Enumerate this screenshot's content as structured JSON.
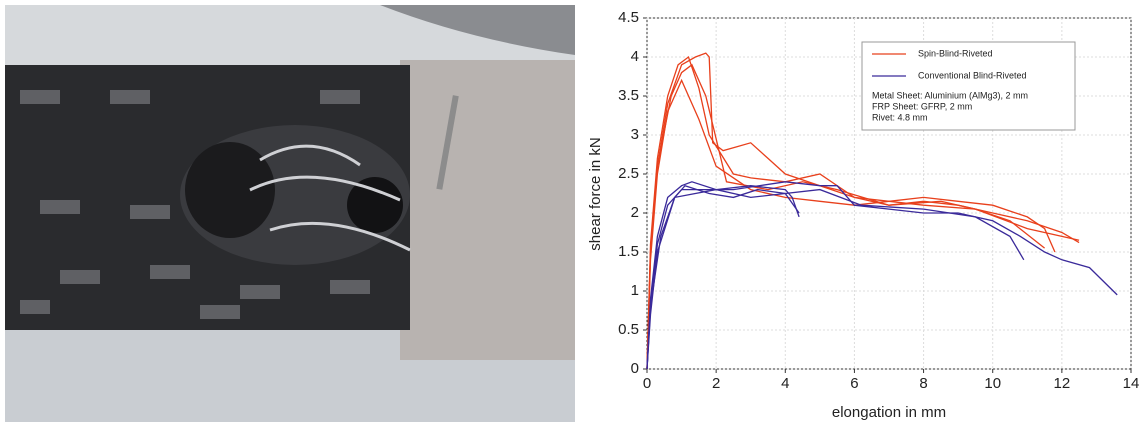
{
  "chart_data": {
    "type": "line",
    "xlabel": "elongation in mm",
    "ylabel": "shear force in kN",
    "xlim": [
      0,
      14
    ],
    "ylim": [
      0,
      4.5
    ],
    "xticks": [
      0,
      2,
      4,
      6,
      8,
      10,
      12,
      14
    ],
    "yticks": [
      0,
      0.5,
      1,
      1.5,
      2,
      2.5,
      3,
      3.5,
      4,
      4.5
    ],
    "grid": true,
    "legend": "upper right",
    "annotations": [
      "Metal Sheet: Aluminium (AlMg3), 2 mm",
      "FRP Sheet: GFRP, 2 mm",
      "Rivet: 4.8 mm"
    ],
    "series": [
      {
        "name": "Spin-Blind-Riveted",
        "color": "#e8401c",
        "curves": [
          {
            "x": [
              0,
              0.1,
              0.3,
              0.6,
              1.0,
              1.4,
              1.7,
              1.8,
              1.9,
              2.2,
              2.6,
              3.0,
              3.5,
              4.0,
              5.0,
              6.0,
              7.0,
              8.0,
              9.0,
              10.0,
              11.0,
              12.0,
              12.5
            ],
            "values": [
              0,
              1.5,
              2.6,
              3.4,
              3.9,
              4.0,
              4.05,
              4.0,
              2.9,
              2.8,
              2.85,
              2.9,
              2.7,
              2.5,
              2.35,
              2.2,
              2.1,
              2.15,
              2.1,
              2.0,
              1.9,
              1.75,
              1.62
            ]
          },
          {
            "x": [
              0,
              0.1,
              0.3,
              0.6,
              0.9,
              1.2,
              1.5,
              1.8,
              2.5,
              3.0,
              4.0,
              5.0,
              6.0,
              7.0,
              8.0,
              9.5,
              10.5,
              11.5
            ],
            "values": [
              0,
              1.6,
              2.7,
              3.5,
              3.9,
              4.0,
              3.6,
              3.0,
              2.5,
              2.45,
              2.4,
              2.5,
              2.2,
              2.15,
              2.1,
              2.05,
              1.9,
              1.55
            ]
          },
          {
            "x": [
              0,
              0.1,
              0.3,
              0.6,
              1.0,
              1.5,
              2.0,
              3.0,
              4.0,
              5.0,
              6.0,
              7.0,
              8.0,
              9.0,
              10.0,
              11.0,
              11.5,
              11.8
            ],
            "values": [
              0,
              1.4,
              2.5,
              3.3,
              3.7,
              3.2,
              2.6,
              2.3,
              2.2,
              2.15,
              2.1,
              2.15,
              2.2,
              2.15,
              2.1,
              1.95,
              1.8,
              1.5
            ]
          },
          {
            "x": [
              0,
              0.1,
              0.3,
              0.7,
              1.0,
              1.3,
              1.7,
              2.3,
              3.5,
              4.5,
              5.5,
              7.0,
              8.5,
              9.5,
              11.0,
              12.0,
              12.5
            ],
            "values": [
              0,
              1.5,
              2.6,
              3.5,
              3.8,
              3.9,
              3.5,
              2.4,
              2.3,
              2.4,
              2.3,
              2.1,
              2.15,
              2.05,
              1.8,
              1.7,
              1.65
            ]
          }
        ]
      },
      {
        "name": "Conventional Blind-Riveted",
        "color": "#3a2a9a",
        "curves": [
          {
            "x": [
              0,
              0.1,
              0.3,
              0.6,
              1.0,
              1.3,
              2.0,
              3.0,
              4.0,
              4.2,
              4.4
            ],
            "values": [
              0,
              0.9,
              1.7,
              2.2,
              2.35,
              2.4,
              2.3,
              2.35,
              2.3,
              2.2,
              1.95
            ]
          },
          {
            "x": [
              0,
              0.1,
              0.3,
              0.6,
              1.0,
              2.5,
              4.0,
              5.0,
              5.5,
              6.0,
              7.0,
              8.0,
              9.0,
              10.0,
              10.8,
              11.5,
              12.0,
              12.8,
              13.6
            ],
            "values": [
              0,
              0.8,
              1.6,
              2.1,
              2.3,
              2.3,
              2.4,
              2.35,
              2.35,
              2.1,
              2.05,
              2.0,
              2.0,
              1.9,
              1.7,
              1.5,
              1.4,
              1.3,
              0.95
            ]
          },
          {
            "x": [
              0,
              0.1,
              0.3,
              0.8,
              2.0,
              3.0,
              5.0,
              6.2,
              8.0,
              9.5,
              10.5,
              10.9
            ],
            "values": [
              0,
              0.7,
              1.5,
              2.2,
              2.3,
              2.2,
              2.3,
              2.1,
              2.05,
              1.95,
              1.7,
              1.4
            ]
          },
          {
            "x": [
              0,
              0.1,
              0.4,
              0.8,
              1.1,
              1.8,
              2.5,
              3.2,
              4.0,
              4.4
            ],
            "values": [
              0,
              0.8,
              1.7,
              2.2,
              2.35,
              2.25,
              2.2,
              2.3,
              2.25,
              2.0
            ]
          }
        ]
      }
    ]
  }
}
